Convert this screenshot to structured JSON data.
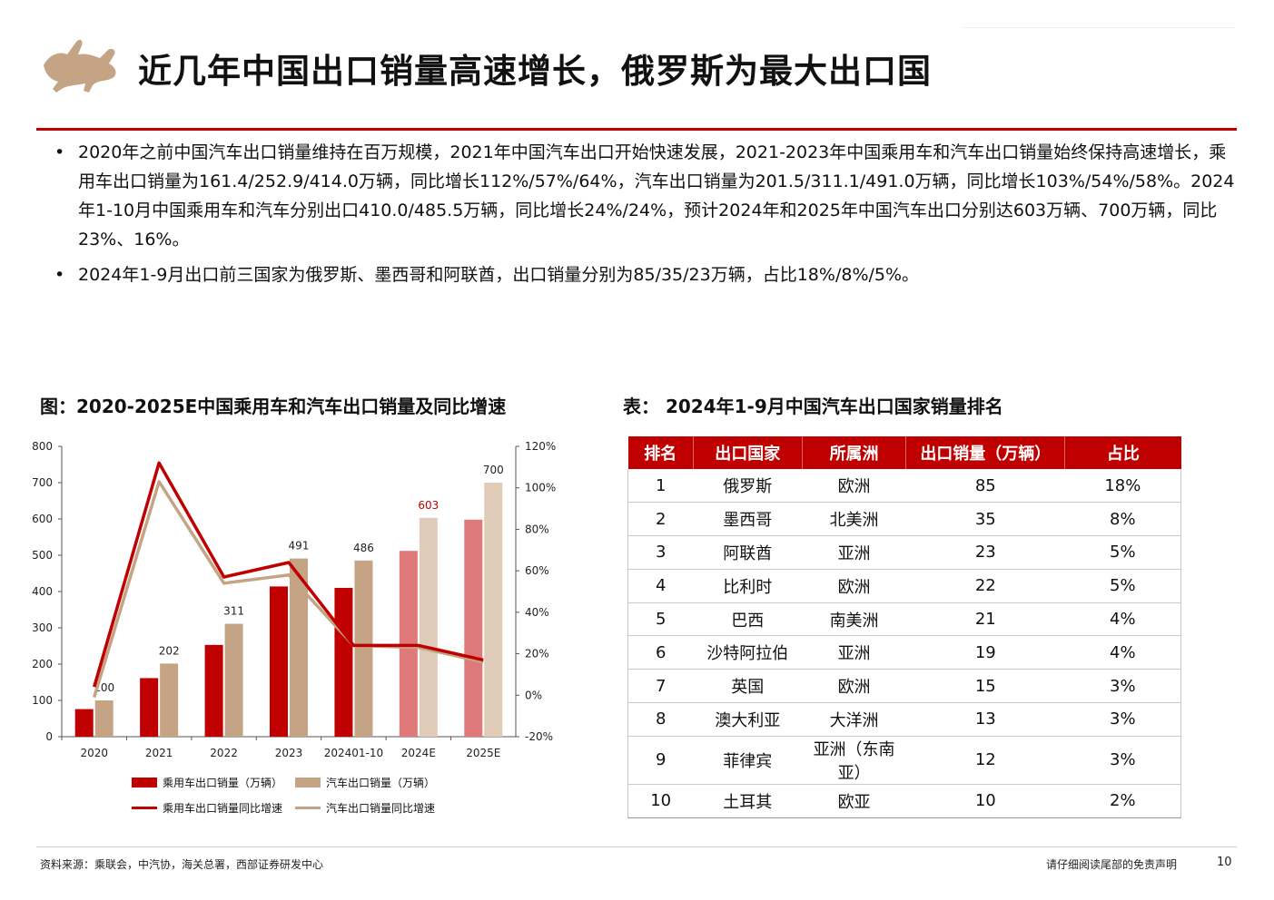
{
  "header": {
    "title": "近几年中国出口销量高速增长，俄罗斯为最大出口国",
    "logo_icon": "bull-logo-icon",
    "accent_color": "#c00000",
    "logo_color": "#c4a484"
  },
  "bullets": [
    "2020年之前中国汽车出口销量维持在百万规模，2021年中国汽车出口开始快速发展，2021-2023年中国乘用车和汽车出口销量始终保持高速增长，乘用车出口销量为161.4/252.9/414.0万辆，同比增长112%/57%/64%，汽车出口销量为201.5/311.1/491.0万辆，同比增长103%/54%/58%。2024年1-10月中国乘用车和汽车分别出口410.0/485.5万辆，同比增长24%/24%，预计2024年和2025年中国汽车出口分别达603万辆、700万辆，同比23%、16%。",
    "2024年1-9月出口前三国家为俄罗斯、墨西哥和阿联酋，出口销量分别为85/35/23万辆，占比18%/8%/5%。"
  ],
  "figure": {
    "title": "图：2020-2025E中国乘用车和汽车出口销量及同比增速"
  },
  "chart_data": {
    "type": "bar",
    "categories": [
      "2020",
      "2021",
      "2022",
      "2023",
      "202401-10",
      "2024E",
      "2025E"
    ],
    "series": [
      {
        "name": "乘用车出口销量（万辆）",
        "kind": "bar",
        "axis": "left",
        "color": "#c00000",
        "values": [
          76,
          161.4,
          252.9,
          414.0,
          410.0,
          512,
          598
        ]
      },
      {
        "name": "汽车出口销量（万辆）",
        "kind": "bar",
        "axis": "left",
        "color": "#c4a484",
        "values": [
          100,
          201.5,
          311.1,
          491.0,
          485.5,
          603,
          700
        ]
      },
      {
        "name": "乘用车出口销量同比增速",
        "kind": "line",
        "axis": "right",
        "color": "#c00000",
        "values": [
          4,
          112,
          57,
          64,
          24,
          24,
          17
        ]
      },
      {
        "name": "汽车出口销量同比增速",
        "kind": "line",
        "axis": "right",
        "color": "#c4a484",
        "values": [
          -1,
          103,
          54,
          58,
          24,
          23,
          16
        ]
      }
    ],
    "data_labels": [
      "100",
      "202",
      "311",
      "491",
      "486",
      "603",
      "700"
    ],
    "label_highlight_index": 5,
    "estimate_colors": {
      "passenger": "#e07a7a",
      "total": "#e0cbb8"
    },
    "estimate_from_index": 5,
    "ylim": [
      0,
      800
    ],
    "yticks": [
      "0",
      "100",
      "200",
      "300",
      "400",
      "500",
      "600",
      "700",
      "800"
    ],
    "y2lim": [
      -20,
      120
    ],
    "y2ticks": [
      "-20%",
      "0%",
      "20%",
      "40%",
      "60%",
      "80%",
      "100%",
      "120%"
    ],
    "legend_position": "bottom",
    "grid": false
  },
  "table": {
    "title": "表：  2024年1-9月中国汽车出口国家销量排名",
    "columns": [
      "排名",
      "出口国家",
      "所属洲",
      "出口销量（万辆）",
      "占比"
    ],
    "rows": [
      [
        "1",
        "俄罗斯",
        "欧洲",
        "85",
        "18%"
      ],
      [
        "2",
        "墨西哥",
        "北美洲",
        "35",
        "8%"
      ],
      [
        "3",
        "阿联酋",
        "亚洲",
        "23",
        "5%"
      ],
      [
        "4",
        "比利时",
        "欧洲",
        "22",
        "5%"
      ],
      [
        "5",
        "巴西",
        "南美洲",
        "21",
        "4%"
      ],
      [
        "6",
        "沙特阿拉伯",
        "亚洲",
        "19",
        "4%"
      ],
      [
        "7",
        "英国",
        "欧洲",
        "15",
        "3%"
      ],
      [
        "8",
        "澳大利亚",
        "大洋洲",
        "13",
        "3%"
      ],
      [
        "9",
        "菲律宾",
        "亚洲（东南亚）",
        "12",
        "3%"
      ],
      [
        "10",
        "土耳其",
        "欧亚",
        "10",
        "2%"
      ]
    ]
  },
  "footer": {
    "source": "资料来源：乘联会，中汽协，海关总署，西部证券研发中心",
    "disclaimer": "请仔细阅读尾部的免责声明",
    "page": "10"
  }
}
